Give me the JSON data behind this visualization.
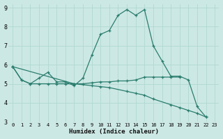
{
  "xlabel": "Humidex (Indice chaleur)",
  "background_color": "#cce8e4",
  "grid_color": "#b0d8d2",
  "line_color": "#2a7d6e",
  "xlim_min": -0.5,
  "xlim_max": 23.5,
  "ylim_min": 3.0,
  "ylim_max": 9.2,
  "xticks": [
    0,
    1,
    2,
    3,
    4,
    5,
    6,
    7,
    8,
    9,
    10,
    11,
    12,
    13,
    14,
    15,
    16,
    17,
    18,
    19,
    20,
    21,
    22,
    23
  ],
  "yticks": [
    3,
    4,
    5,
    6,
    7,
    8,
    9
  ],
  "line1_x": [
    0,
    1,
    2,
    3,
    4,
    5,
    6,
    7,
    8,
    9,
    10,
    11,
    12,
    13,
    14,
    15,
    16,
    17,
    18,
    19,
    20,
    21,
    22
  ],
  "line1_y": [
    5.9,
    5.2,
    5.0,
    5.3,
    5.6,
    5.1,
    5.1,
    4.9,
    5.3,
    6.5,
    7.6,
    7.8,
    8.6,
    8.9,
    8.6,
    8.9,
    7.0,
    6.2,
    5.4,
    5.4,
    5.2,
    3.8,
    3.25
  ],
  "line2_x": [
    0,
    1,
    2,
    3,
    4,
    5,
    6,
    7,
    8,
    9,
    10,
    11,
    12,
    13,
    14,
    15,
    16,
    17,
    18,
    19
  ],
  "line2_y": [
    5.9,
    5.2,
    5.0,
    5.0,
    5.0,
    5.0,
    5.0,
    5.0,
    5.0,
    5.05,
    5.1,
    5.1,
    5.15,
    5.15,
    5.2,
    5.35,
    5.35,
    5.35,
    5.35,
    5.35
  ],
  "line3_x": [
    0,
    7,
    9,
    10,
    11,
    13,
    14,
    15,
    16,
    18,
    19,
    20,
    21,
    22
  ],
  "line3_y": [
    5.9,
    5.0,
    4.9,
    4.85,
    4.8,
    4.6,
    4.5,
    4.4,
    4.2,
    3.9,
    3.75,
    3.6,
    3.45,
    3.25
  ]
}
